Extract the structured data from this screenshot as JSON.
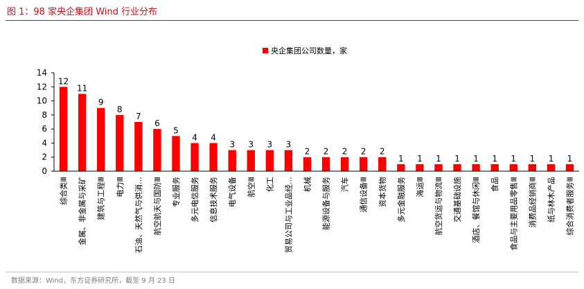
{
  "figure": {
    "title": "图 1：98 家央企集团 Wind 行业分布",
    "source": "数据来源：Wind，东方证券研究所，截至 9 月 23 日"
  },
  "colors": {
    "bar": "#ff0000",
    "title": "#c0141b",
    "axis": "#000000"
  },
  "chart_data": {
    "type": "bar",
    "title": "",
    "legend": "央企集团公司数量，家",
    "legend_position": "top-center",
    "xlabel": "",
    "ylabel": "",
    "ylim": [
      0,
      14
    ],
    "yticks": [
      0,
      2,
      4,
      6,
      8,
      10,
      12,
      14
    ],
    "grid": false,
    "categories": [
      "综合类Ⅲ",
      "金属、非金属与采矿",
      "建筑与工程Ⅲ",
      "电力Ⅲ",
      "石油、天然气与供消…",
      "航空航天与国防Ⅲ",
      "专业服务",
      "多元电信服务",
      "信息技术服务",
      "电气设备",
      "航空Ⅲ",
      "化工",
      "贸易公司与工业品经…",
      "机械",
      "能源设备与服务",
      "汽车",
      "通信设备Ⅲ",
      "资本货物",
      "多元金融服务",
      "海运Ⅲ",
      "航空货运与物流Ⅲ",
      "交通基础设施",
      "酒店、餐馆与休闲Ⅲ",
      "食品",
      "食品与主要用品零售Ⅲ",
      "消费品经销商Ⅲ",
      "纸与林木产品",
      "综合消费者服务Ⅲ"
    ],
    "values": [
      12,
      11,
      9,
      8,
      7,
      6,
      5,
      4,
      4,
      3,
      3,
      3,
      3,
      2,
      2,
      2,
      2,
      2,
      1,
      1,
      1,
      1,
      1,
      1,
      1,
      1,
      1,
      1
    ]
  }
}
